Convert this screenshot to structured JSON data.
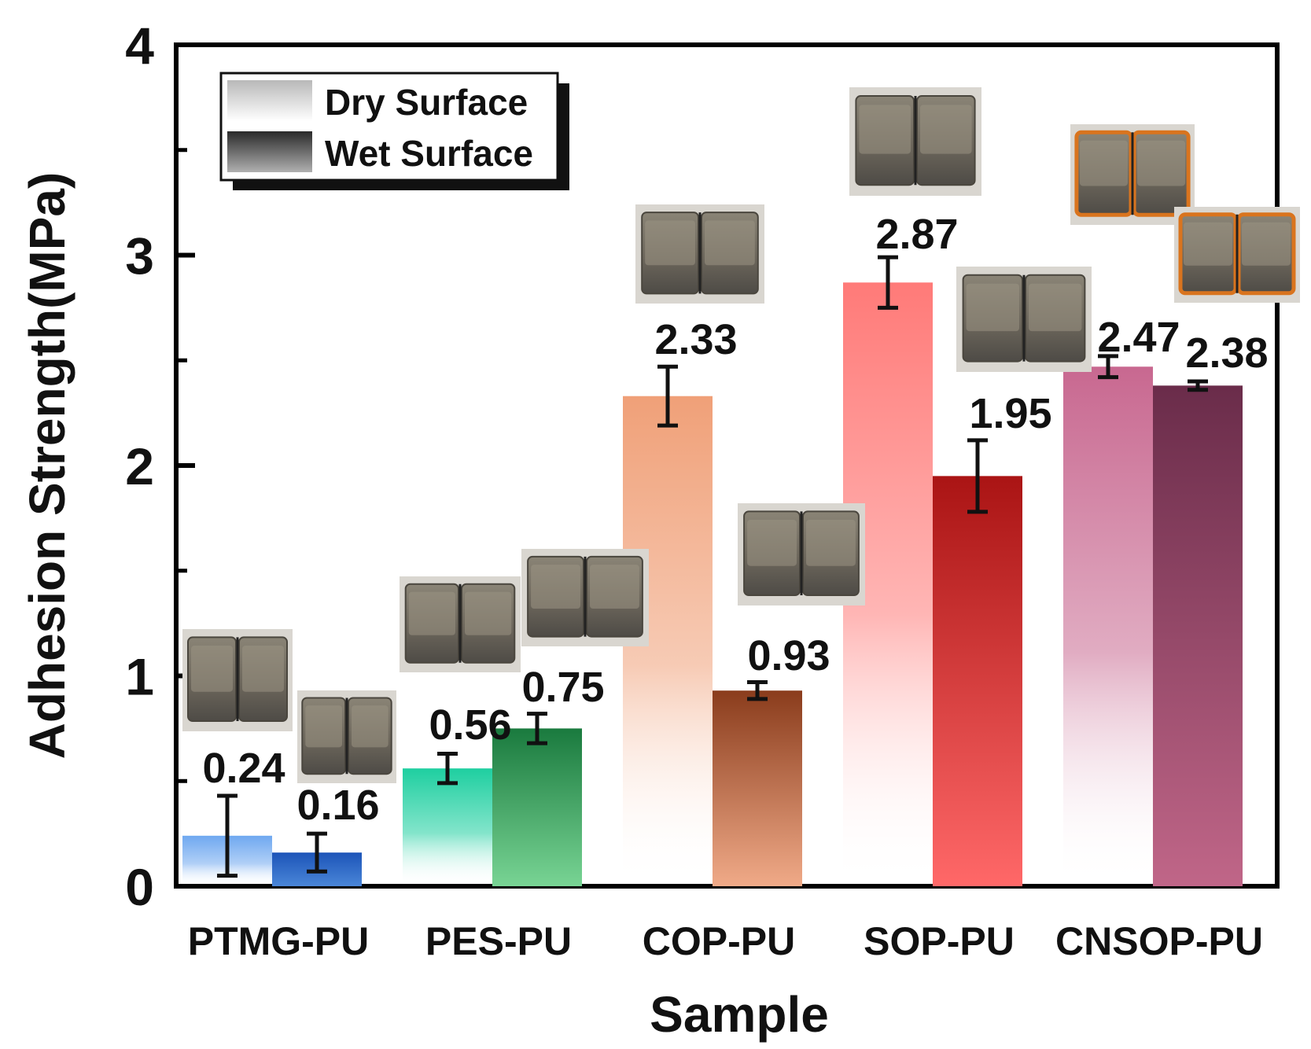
{
  "chart_data": {
    "type": "bar",
    "title": "",
    "xlabel": "Sample",
    "ylabel": "Adhesion Strength(MPa)",
    "ylim": [
      0,
      4
    ],
    "yticks": [
      {
        "value": 0,
        "label": "0"
      },
      {
        "value": 1,
        "label": "1"
      },
      {
        "value": 2,
        "label": "2"
      },
      {
        "value": 3,
        "label": "3"
      },
      {
        "value": 4,
        "label": "4"
      }
    ],
    "categories": [
      "PTMG-PU",
      "PES-PU",
      "COP-PU",
      "SOP-PU",
      "CNSOP-PU"
    ],
    "series": [
      {
        "name": "Dry Surface",
        "values": [
          0.24,
          0.56,
          2.33,
          2.87,
          2.47
        ],
        "errors": [
          0.19,
          0.07,
          0.14,
          0.12,
          0.05
        ]
      },
      {
        "name": "Wet Surface",
        "values": [
          0.16,
          0.75,
          0.93,
          1.95,
          2.38
        ],
        "errors": [
          0.09,
          0.07,
          0.04,
          0.17,
          0.02
        ]
      }
    ],
    "value_labels": {
      "dry": [
        "0.24",
        "0.56",
        "2.33",
        "2.87",
        "2.47"
      ],
      "wet": [
        "0.16",
        "0.75",
        "0.93",
        "1.95",
        "2.38"
      ]
    },
    "bar_colors": {
      "dry": [
        "#6fa8f0",
        "#1ecfa0",
        "#f0a078",
        "#ff7a78",
        "#c86890"
      ],
      "wet": [
        "#1c54b8",
        "#1a7a3e",
        "#8a3c1c",
        "#aa1414",
        "#6a2c4a"
      ],
      "wet_bottom": [
        "#4a86d8",
        "#78d494",
        "#f0aa88",
        "#ff6868",
        "#c06688"
      ]
    },
    "legend": {
      "position": "top-left",
      "entries": [
        "Dry Surface",
        "Wet Surface"
      ]
    },
    "inset_photos": "photographs of bonded specimen blocks above each bar"
  }
}
